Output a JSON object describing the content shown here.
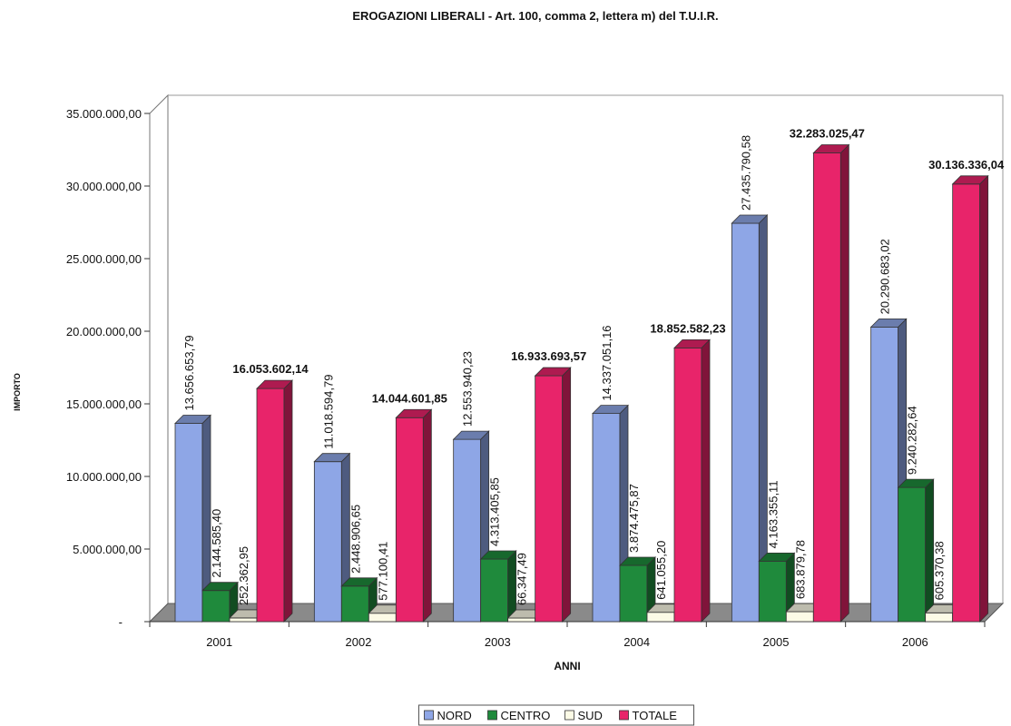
{
  "chart_data": {
    "type": "bar",
    "title": "EROGAZIONI LIBERALI - Art. 100, comma 2, lettera m) del T.U.I.R.",
    "xlabel": "ANNI",
    "ylabel": "IMPORTO",
    "categories": [
      "2001",
      "2002",
      "2003",
      "2004",
      "2005",
      "2006"
    ],
    "ylim": [
      0,
      35000000
    ],
    "yticks": [
      0,
      5000000,
      10000000,
      15000000,
      20000000,
      25000000,
      30000000,
      35000000
    ],
    "ytick_labels": [
      "-",
      "5.000.000,00",
      "10.000.000,00",
      "15.000.000,00",
      "20.000.000,00",
      "25.000.000,00",
      "30.000.000,00",
      "35.000.000,00"
    ],
    "legend_position": "bottom",
    "grid": false,
    "series": [
      {
        "name": "NORD",
        "color": "#8ea6e6",
        "values": [
          13656653.79,
          11018594.79,
          12553940.23,
          14337051.16,
          27435790.58,
          20290683.02
        ],
        "labels": [
          "13.656.653,79",
          "11.018.594,79",
          "12.553.940,23",
          "14.337.051,16",
          "27.435.790,58",
          "20.290.683,02"
        ]
      },
      {
        "name": "CENTRO",
        "color": "#1f8a3c",
        "values": [
          2144585.4,
          2448906.65,
          4313405.85,
          3874475.87,
          4163355.11,
          9240282.64
        ],
        "labels": [
          "2.144.585,40",
          "2.448.906,65",
          "4.313.405,85",
          "3.874.475,87",
          "4.163.355,11",
          "9.240.282,64"
        ]
      },
      {
        "name": "SUD",
        "color": "#fcfbe6",
        "values": [
          252362.95,
          577100.41,
          66347.49,
          641055.2,
          683879.78,
          605370.38
        ],
        "labels": [
          "252.362,95",
          "577.100,41",
          "66.347,49",
          "641.055,20",
          "683.879,78",
          "605.370,38"
        ]
      },
      {
        "name": "TOTALE",
        "color": "#e8246a",
        "values": [
          16053602.14,
          14044601.85,
          16933693.57,
          18852582.23,
          32283025.47,
          30136336.04
        ],
        "labels": [
          "16.053.602,14",
          "14.044.601,85",
          "16.933.693,57",
          "18.852.582,23",
          "32.283.025,47",
          "30.136.336,04"
        ]
      }
    ]
  }
}
